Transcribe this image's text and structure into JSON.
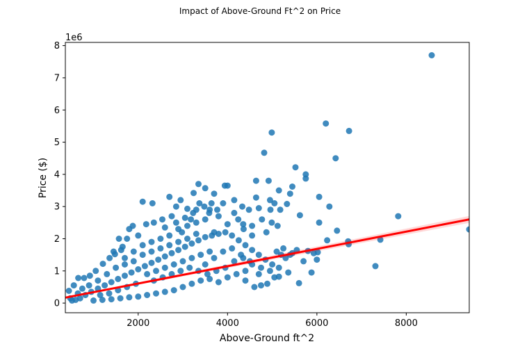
{
  "chart_data": {
    "type": "scatter",
    "title": "Impact of Above-Ground Ft^2 on Price",
    "xlabel": "Above-Ground ft^2",
    "ylabel": "Price ($)",
    "y_offset_label": "1e6",
    "xlim": [
      370,
      9410
    ],
    "ylim": [
      -0.3,
      8.1
    ],
    "x_ticks": [
      2000,
      4000,
      6000,
      8000
    ],
    "x_tick_labels": [
      "2000",
      "4000",
      "6000",
      "8000"
    ],
    "y_ticks": [
      0,
      1,
      2,
      3,
      4,
      5,
      6,
      7,
      8
    ],
    "y_tick_labels": [
      "0",
      "1",
      "2",
      "3",
      "4",
      "5",
      "6",
      "7",
      "8"
    ],
    "grid": false,
    "point_color": "#1f77b4",
    "fit_color": "#ff0000",
    "regression_line": {
      "x": [
        370,
        9410
      ],
      "y": [
        0.17,
        2.6
      ]
    },
    "points": [
      [
        8570,
        7.7
      ],
      [
        6200,
        5.58
      ],
      [
        6720,
        5.35
      ],
      [
        4990,
        5.3
      ],
      [
        4820,
        4.67
      ],
      [
        6420,
        4.5
      ],
      [
        5520,
        4.22
      ],
      [
        5750,
        4.0
      ],
      [
        5750,
        3.87
      ],
      [
        4920,
        3.8
      ],
      [
        4640,
        3.8
      ],
      [
        3940,
        3.65
      ],
      [
        4000,
        3.65
      ],
      [
        3350,
        3.7
      ],
      [
        5450,
        3.62
      ],
      [
        3500,
        3.57
      ],
      [
        3700,
        3.4
      ],
      [
        3240,
        3.42
      ],
      [
        5150,
        3.5
      ],
      [
        4950,
        3.2
      ],
      [
        5050,
        3.1
      ],
      [
        5400,
        3.4
      ],
      [
        6050,
        3.3
      ],
      [
        6280,
        3.0
      ],
      [
        5330,
        3.08
      ],
      [
        4640,
        3.28
      ],
      [
        4330,
        3.0
      ],
      [
        3900,
        3.1
      ],
      [
        3640,
        3.1
      ],
      [
        3370,
        3.1
      ],
      [
        3480,
        3.0
      ],
      [
        2950,
        3.2
      ],
      [
        2700,
        3.3
      ],
      [
        2320,
        3.1
      ],
      [
        2100,
        3.15
      ],
      [
        2850,
        3.0
      ],
      [
        3100,
        2.93
      ],
      [
        3300,
        2.9
      ],
      [
        3590,
        2.8
      ],
      [
        3770,
        2.9
      ],
      [
        4150,
        2.8
      ],
      [
        4480,
        2.9
      ],
      [
        4700,
        2.95
      ],
      [
        4960,
        2.9
      ],
      [
        5180,
        2.9
      ],
      [
        5620,
        2.73
      ],
      [
        6050,
        2.5
      ],
      [
        6450,
        2.25
      ],
      [
        6230,
        1.95
      ],
      [
        6700,
        1.92
      ],
      [
        6710,
        1.83
      ],
      [
        7420,
        1.97
      ],
      [
        7820,
        2.7
      ],
      [
        9410,
        2.29
      ],
      [
        7310,
        1.15
      ],
      [
        6020,
        1.58
      ],
      [
        5930,
        1.55
      ],
      [
        5800,
        1.62
      ],
      [
        5700,
        1.3
      ],
      [
        6000,
        1.35
      ],
      [
        5550,
        1.65
      ],
      [
        5200,
        1.5
      ],
      [
        5360,
        0.95
      ],
      [
        5600,
        0.62
      ],
      [
        5880,
        0.95
      ],
      [
        4750,
        0.55
      ],
      [
        4890,
        0.6
      ],
      [
        4600,
        0.5
      ],
      [
        4400,
        0.7
      ],
      [
        5050,
        0.8
      ],
      [
        5150,
        0.82
      ],
      [
        4700,
        0.9
      ],
      [
        4870,
        2.2
      ],
      [
        4550,
        2.4
      ],
      [
        4240,
        2.6
      ],
      [
        4000,
        2.45
      ],
      [
        3800,
        2.7
      ],
      [
        4360,
        2.3
      ],
      [
        4550,
        2.1
      ],
      [
        4770,
        2.6
      ],
      [
        4990,
        2.5
      ],
      [
        5120,
        2.4
      ],
      [
        2980,
        2.2
      ],
      [
        3180,
        2.6
      ],
      [
        3230,
        2.8
      ],
      [
        2750,
        2.7
      ],
      [
        2540,
        2.6
      ],
      [
        2350,
        2.5
      ],
      [
        2180,
        2.45
      ],
      [
        1880,
        2.4
      ],
      [
        1750,
        2.0
      ],
      [
        1570,
        2.0
      ],
      [
        1620,
        1.65
      ],
      [
        1480,
        1.52
      ],
      [
        1360,
        1.4
      ],
      [
        1210,
        1.22
      ],
      [
        1050,
        1.0
      ],
      [
        920,
        0.85
      ],
      [
        790,
        0.78
      ],
      [
        660,
        0.78
      ],
      [
        560,
        0.55
      ],
      [
        450,
        0.38
      ],
      [
        480,
        0.15
      ],
      [
        520,
        0.08
      ],
      [
        600,
        0.1
      ],
      [
        700,
        0.15
      ],
      [
        820,
        0.25
      ],
      [
        950,
        0.35
      ],
      [
        1100,
        0.45
      ],
      [
        1250,
        0.55
      ],
      [
        1400,
        0.65
      ],
      [
        1550,
        0.75
      ],
      [
        1700,
        0.85
      ],
      [
        1850,
        0.95
      ],
      [
        2000,
        1.05
      ],
      [
        2150,
        1.15
      ],
      [
        2300,
        1.25
      ],
      [
        2450,
        1.35
      ],
      [
        2600,
        1.45
      ],
      [
        2750,
        1.55
      ],
      [
        2900,
        1.65
      ],
      [
        3050,
        1.75
      ],
      [
        3200,
        1.85
      ],
      [
        3350,
        1.95
      ],
      [
        3500,
        2.05
      ],
      [
        3650,
        2.1
      ],
      [
        3800,
        2.15
      ],
      [
        3950,
        2.2
      ],
      [
        4100,
        2.1
      ],
      [
        4250,
        1.95
      ],
      [
        4400,
        1.8
      ],
      [
        4550,
        1.65
      ],
      [
        4700,
        1.5
      ],
      [
        4850,
        1.35
      ],
      [
        5000,
        1.2
      ],
      [
        5150,
        1.1
      ],
      [
        5300,
        1.4
      ],
      [
        5450,
        1.55
      ],
      [
        3000,
        0.5
      ],
      [
        2800,
        0.4
      ],
      [
        2600,
        0.35
      ],
      [
        2400,
        0.3
      ],
      [
        2200,
        0.25
      ],
      [
        2000,
        0.2
      ],
      [
        1800,
        0.18
      ],
      [
        1600,
        0.15
      ],
      [
        1400,
        0.12
      ],
      [
        1200,
        0.1
      ],
      [
        1000,
        0.08
      ],
      [
        3200,
        0.6
      ],
      [
        3400,
        0.7
      ],
      [
        3600,
        0.75
      ],
      [
        3800,
        0.65
      ],
      [
        4000,
        0.8
      ],
      [
        4200,
        0.9
      ],
      [
        4400,
        1.0
      ],
      [
        3500,
        1.2
      ],
      [
        3700,
        1.4
      ],
      [
        3900,
        1.6
      ],
      [
        4100,
        1.7
      ],
      [
        4300,
        1.5
      ],
      [
        4500,
        1.3
      ],
      [
        2500,
        2.0
      ],
      [
        2300,
        1.9
      ],
      [
        2100,
        1.8
      ],
      [
        1900,
        1.6
      ],
      [
        1700,
        1.4
      ],
      [
        2700,
        2.1
      ],
      [
        2900,
        2.3
      ],
      [
        3100,
        2.4
      ],
      [
        3300,
        2.5
      ],
      [
        3500,
        2.6
      ],
      [
        3700,
        2.2
      ],
      [
        1300,
        0.9
      ],
      [
        1500,
        1.1
      ],
      [
        1700,
        1.2
      ],
      [
        1900,
        1.3
      ],
      [
        2100,
        1.5
      ],
      [
        2300,
        1.6
      ],
      [
        2500,
        1.7
      ],
      [
        2700,
        1.8
      ],
      [
        2900,
        1.9
      ],
      [
        3100,
        2.0
      ],
      [
        3300,
        2.15
      ],
      [
        1100,
        0.7
      ],
      [
        900,
        0.55
      ],
      [
        750,
        0.45
      ],
      [
        650,
        0.3
      ],
      [
        2200,
        0.9
      ],
      [
        2400,
        1.0
      ],
      [
        2600,
        1.1
      ],
      [
        2800,
        1.2
      ],
      [
        3000,
        1.3
      ],
      [
        3200,
        1.4
      ],
      [
        3400,
        1.5
      ],
      [
        3600,
        1.6
      ],
      [
        1950,
        0.6
      ],
      [
        1750,
        0.5
      ],
      [
        1550,
        0.4
      ],
      [
        1350,
        0.3
      ],
      [
        1150,
        0.25
      ],
      [
        2350,
        0.7
      ],
      [
        2550,
        0.8
      ],
      [
        2750,
        0.9
      ],
      [
        2950,
        1.0
      ],
      [
        3150,
        1.1
      ],
      [
        3350,
        1.0
      ],
      [
        3550,
        0.9
      ],
      [
        3750,
        1.0
      ],
      [
        3950,
        1.1
      ],
      [
        4150,
        1.3
      ],
      [
        4350,
        1.4
      ],
      [
        4550,
        1.2
      ],
      [
        4750,
        1.1
      ],
      [
        4950,
        1.0
      ],
      [
        5100,
        1.6
      ],
      [
        5250,
        1.7
      ],
      [
        5400,
        1.5
      ],
      [
        1650,
        1.75
      ],
      [
        1450,
        1.6
      ],
      [
        2000,
        2.1
      ],
      [
        1800,
        2.3
      ],
      [
        2600,
        2.35
      ],
      [
        2850,
        2.5
      ],
      [
        3050,
        2.65
      ],
      [
        3600,
        2.9
      ],
      [
        4150,
        3.2
      ],
      [
        4350,
        2.45
      ]
    ]
  }
}
